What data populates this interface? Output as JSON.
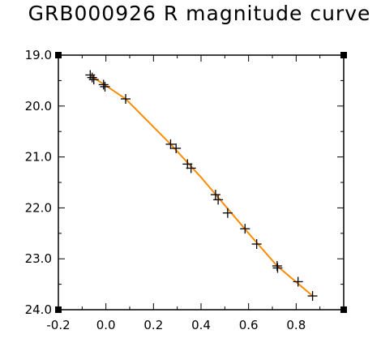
{
  "chart_data": {
    "type": "scatter",
    "title": "GRB000926 R magnitude curve",
    "xlabel": "",
    "ylabel": "",
    "xlim": [
      -0.2,
      1.0
    ],
    "ylim": [
      24.0,
      19.0
    ],
    "y_inverted": true,
    "grid": false,
    "xticks": [
      "-0.2",
      "0.0",
      "0.2",
      "0.4",
      "0.6",
      "0.8"
    ],
    "yticks": [
      "19.0",
      "20.0",
      "21.0",
      "22.0",
      "23.0",
      "24.0"
    ],
    "series": [
      {
        "marker": "plus",
        "color": "#000000",
        "points": [
          {
            "x": -0.066,
            "y": 19.39
          },
          {
            "x": -0.058,
            "y": 19.44
          },
          {
            "x": -0.051,
            "y": 19.48
          },
          {
            "x": -0.01,
            "y": 19.58
          },
          {
            "x": -0.004,
            "y": 19.62
          },
          {
            "x": 0.083,
            "y": 19.86
          },
          {
            "x": 0.272,
            "y": 20.75
          },
          {
            "x": 0.295,
            "y": 20.83
          },
          {
            "x": 0.343,
            "y": 21.14
          },
          {
            "x": 0.358,
            "y": 21.22
          },
          {
            "x": 0.461,
            "y": 21.74
          },
          {
            "x": 0.472,
            "y": 21.84
          },
          {
            "x": 0.512,
            "y": 22.1
          },
          {
            "x": 0.585,
            "y": 22.41
          },
          {
            "x": 0.634,
            "y": 22.71
          },
          {
            "x": 0.72,
            "y": 23.14
          },
          {
            "x": 0.722,
            "y": 23.18
          },
          {
            "x": 0.808,
            "y": 23.45
          },
          {
            "x": 0.869,
            "y": 23.73
          }
        ]
      },
      {
        "type": "line",
        "color": "#ff8c00",
        "points": [
          {
            "x": -0.066,
            "y": 19.4
          },
          {
            "x": 0.0,
            "y": 19.6
          },
          {
            "x": 0.083,
            "y": 19.86
          },
          {
            "x": 0.272,
            "y": 20.75
          },
          {
            "x": 0.4,
            "y": 21.4
          },
          {
            "x": 0.6,
            "y": 22.5
          },
          {
            "x": 0.72,
            "y": 23.14
          },
          {
            "x": 0.869,
            "y": 23.73
          }
        ]
      }
    ],
    "accent_color": "#ff8c00"
  }
}
